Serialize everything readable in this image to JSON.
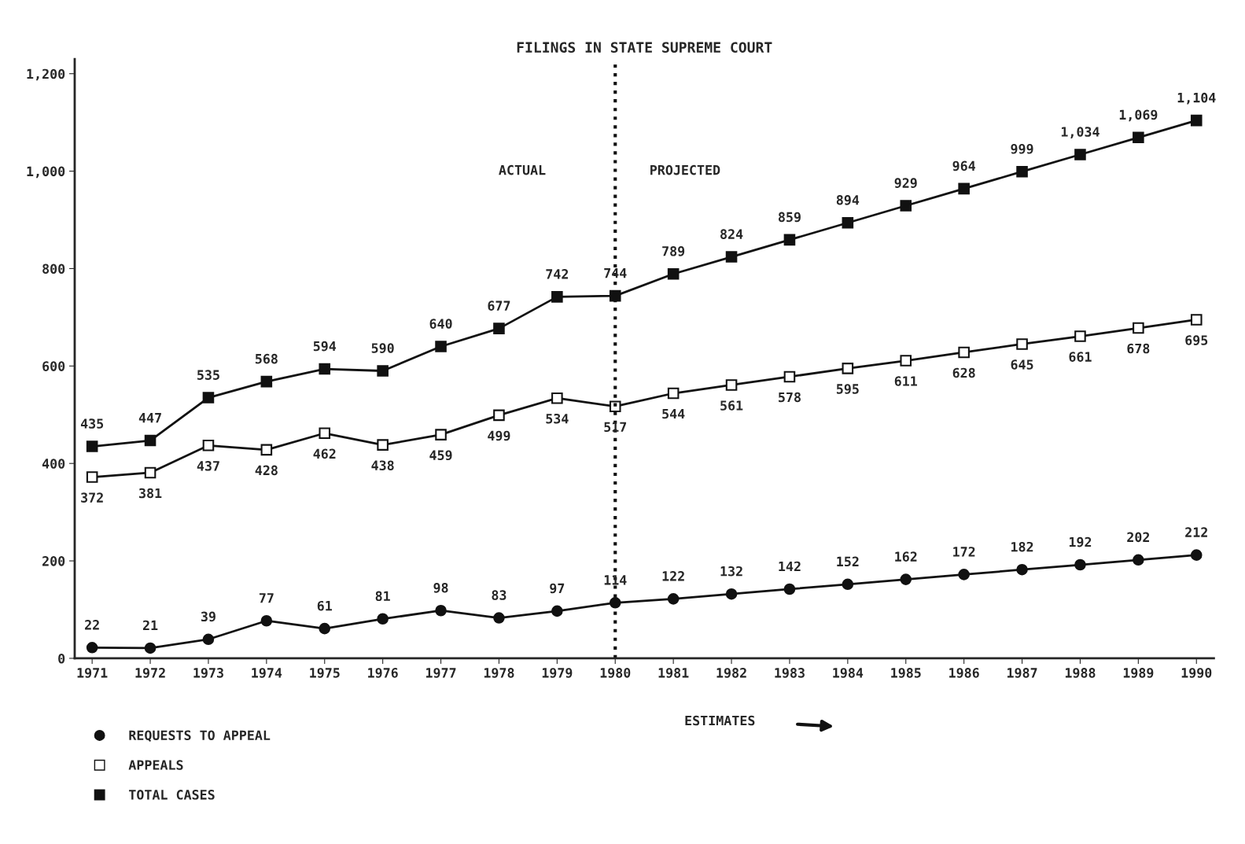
{
  "chart_data": {
    "type": "line",
    "title": "FILINGS IN STATE SUPREME COURT",
    "categories": [
      "1971",
      "1972",
      "1973",
      "1974",
      "1975",
      "1976",
      "1977",
      "1978",
      "1979",
      "1980",
      "1981",
      "1982",
      "1983",
      "1984",
      "1985",
      "1986",
      "1987",
      "1988",
      "1989",
      "1990"
    ],
    "series": [
      {
        "name": "REQUESTS TO APPEAL",
        "color": "#111111",
        "marker": "circle",
        "values": [
          22,
          21,
          39,
          77,
          61,
          81,
          98,
          83,
          97,
          114,
          122,
          132,
          142,
          152,
          162,
          172,
          182,
          192,
          202,
          212
        ]
      },
      {
        "name": "APPEALS",
        "color": "#111111",
        "marker": "square",
        "values": [
          372,
          381,
          437,
          428,
          462,
          438,
          459,
          499,
          534,
          517,
          544,
          561,
          578,
          595,
          611,
          628,
          645,
          661,
          678,
          695
        ]
      },
      {
        "name": "TOTAL CASES",
        "color": "#111111",
        "marker": "square",
        "values": [
          435,
          447,
          535,
          568,
          594,
          590,
          640,
          677,
          742,
          744,
          789,
          824,
          859,
          894,
          929,
          964,
          999,
          1034,
          1069,
          1104
        ],
        "value_labels": [
          "435",
          "447",
          "535",
          "568",
          "594",
          "590",
          "640",
          "677",
          "742",
          "744",
          "789",
          "824",
          "859",
          "894",
          "929",
          "964",
          "999",
          "1,034",
          "1,069",
          "1,104"
        ]
      }
    ],
    "data_labels": true,
    "ylim": [
      0,
      1230
    ],
    "yticks": [
      0,
      200,
      400,
      600,
      800,
      {
        "value": 1000,
        "label": "1,000"
      },
      {
        "value": 1200,
        "label": "1,200"
      }
    ],
    "ref_lines": [
      {
        "axis": "x",
        "value": "1980",
        "line_style": "dotted"
      }
    ],
    "annotations": [
      "ACTUAL",
      "PROJECTED",
      "ESTIMATES"
    ],
    "legend": "bottom left",
    "grid": false,
    "line_style": "solid"
  }
}
